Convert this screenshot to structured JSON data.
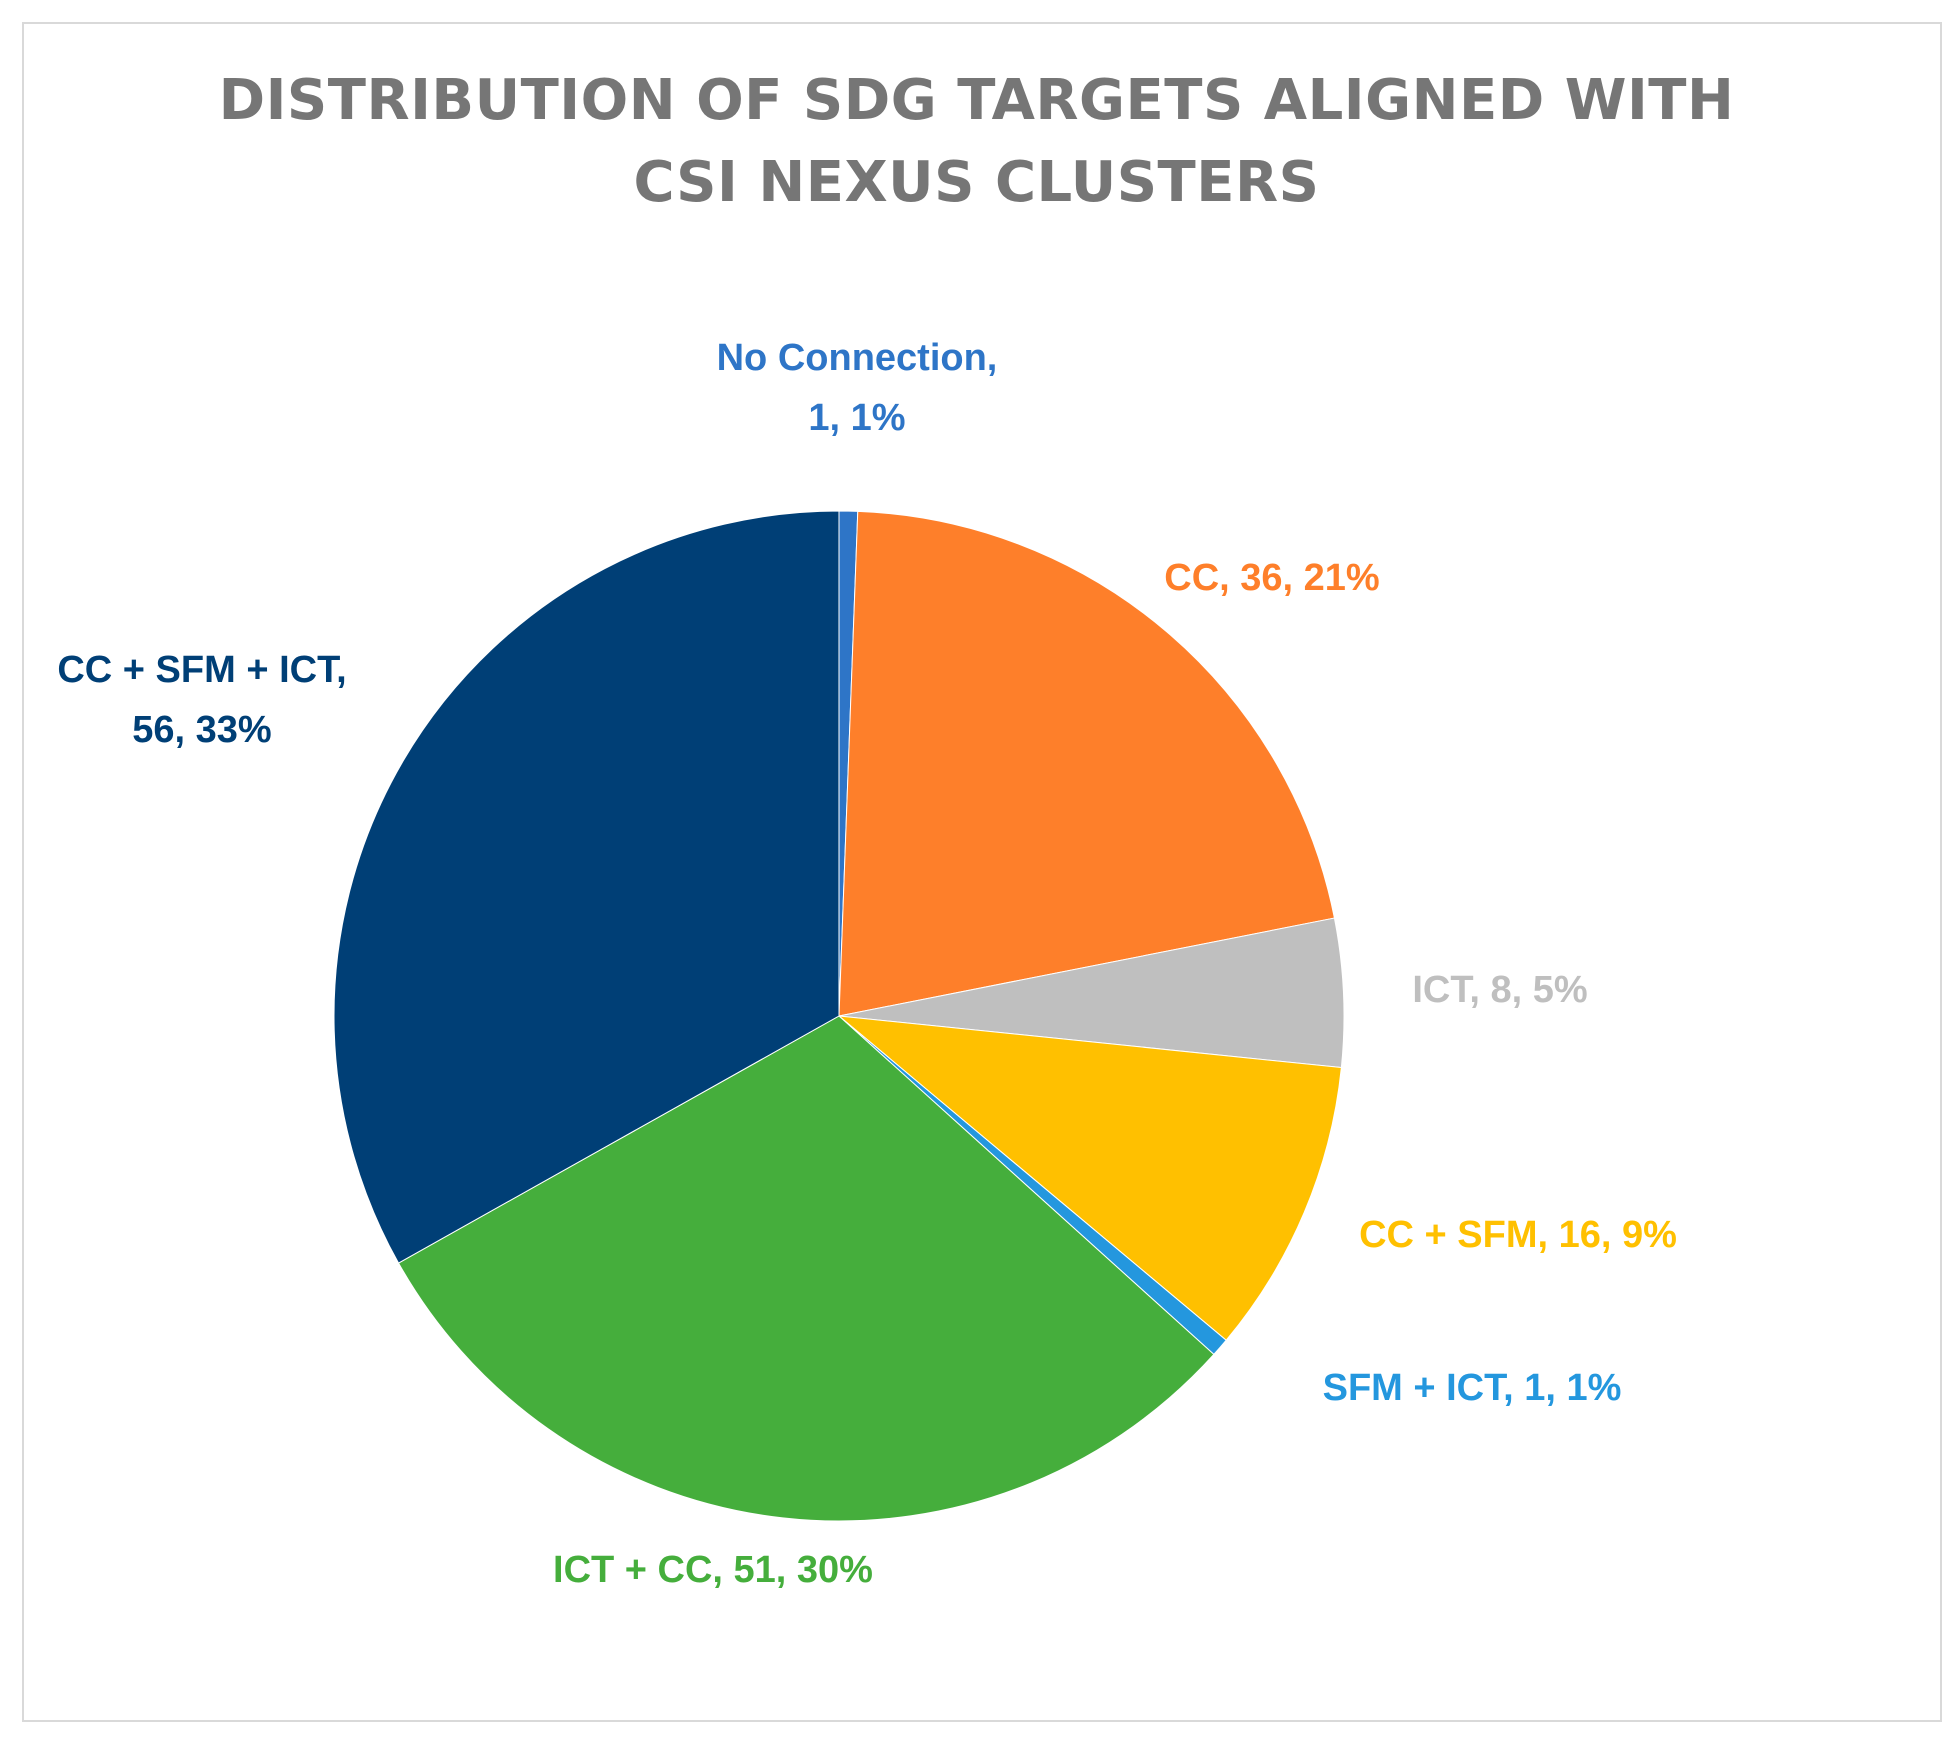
{
  "chart_data": {
    "type": "pie",
    "title": "DISTRIBUTION OF SDG TARGETS ALIGNED WITH CSI NEXUS CLUSTERS",
    "title_lines": [
      "DISTRIBUTION OF SDG TARGETS ALIGNED WITH",
      "CSI NEXUS CLUSTERS"
    ],
    "slices": [
      {
        "name": "No Connection",
        "value": 1,
        "percent": "1%",
        "color": "#2E75C7",
        "label_color": "#2E75C7",
        "label": "No Connection,\n1, 1%"
      },
      {
        "name": "CC",
        "value": 36,
        "percent": "21%",
        "color": "#FE7F2A",
        "label_color": "#FE7F2A",
        "label": "CC, 36, 21%"
      },
      {
        "name": "ICT",
        "value": 8,
        "percent": "5%",
        "color": "#BFBFBF",
        "label_color": "#BFBFBF",
        "label": "ICT, 8, 5%"
      },
      {
        "name": "CC + SFM",
        "value": 16,
        "percent": "9%",
        "color": "#FFC000",
        "label_color": "#FFC000",
        "label": "CC + SFM, 16, 9%"
      },
      {
        "name": "SFM + ICT",
        "value": 1,
        "percent": "1%",
        "color": "#2497DE",
        "label_color": "#2497DE",
        "label": "SFM + ICT, 1, 1%"
      },
      {
        "name": "ICT + CC",
        "value": 51,
        "percent": "30%",
        "color": "#45AE3C",
        "label_color": "#45AE3C",
        "label": "ICT + CC, 51, 30%"
      },
      {
        "name": "CC + SFM + ICT",
        "value": 56,
        "percent": "33%",
        "color": "#003F76",
        "label_color": "#003F76",
        "label": "CC + SFM + ICT,\n56, 33%"
      }
    ],
    "start_angle": "12 o'clock",
    "direction": "clockwise",
    "legend": "none",
    "data_labels": "category, value, percentage"
  }
}
